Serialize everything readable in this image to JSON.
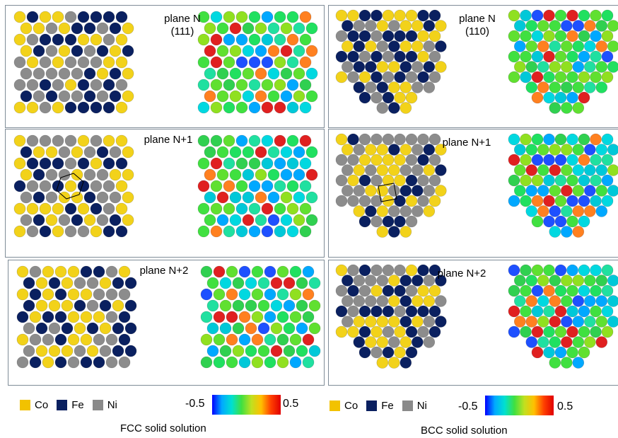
{
  "panels": [
    {
      "label_lines": [
        "plane N",
        "(111)"
      ],
      "structure": "fcc",
      "marker": "none",
      "seed": 11
    },
    {
      "label_lines": [
        "plane N",
        "(110)"
      ],
      "structure": "bcc",
      "marker": "none",
      "seed": 23
    },
    {
      "label_lines": [
        "plane N+1"
      ],
      "structure": "fcc",
      "marker": "hexagon",
      "seed": 37
    },
    {
      "label_lines": [
        "plane N+1"
      ],
      "structure": "bcc",
      "marker": "square",
      "seed": 41
    },
    {
      "label_lines": [
        "plane N+2"
      ],
      "structure": "fcc",
      "marker": "none",
      "seed": 53
    },
    {
      "label_lines": [
        "plane N+2"
      ],
      "structure": "bcc",
      "marker": "none",
      "seed": 67
    }
  ],
  "legend": {
    "items": [
      {
        "name": "Co",
        "color": "#f2c200"
      },
      {
        "name": "Fe",
        "color": "#0a2060"
      },
      {
        "name": "Ni",
        "color": "#8a8a8a"
      }
    ],
    "colorbar": {
      "min": "-0.5",
      "max": "0.5"
    }
  },
  "captions": {
    "fcc": "FCC solid solution",
    "bcc": "BCC solid solution"
  }
}
